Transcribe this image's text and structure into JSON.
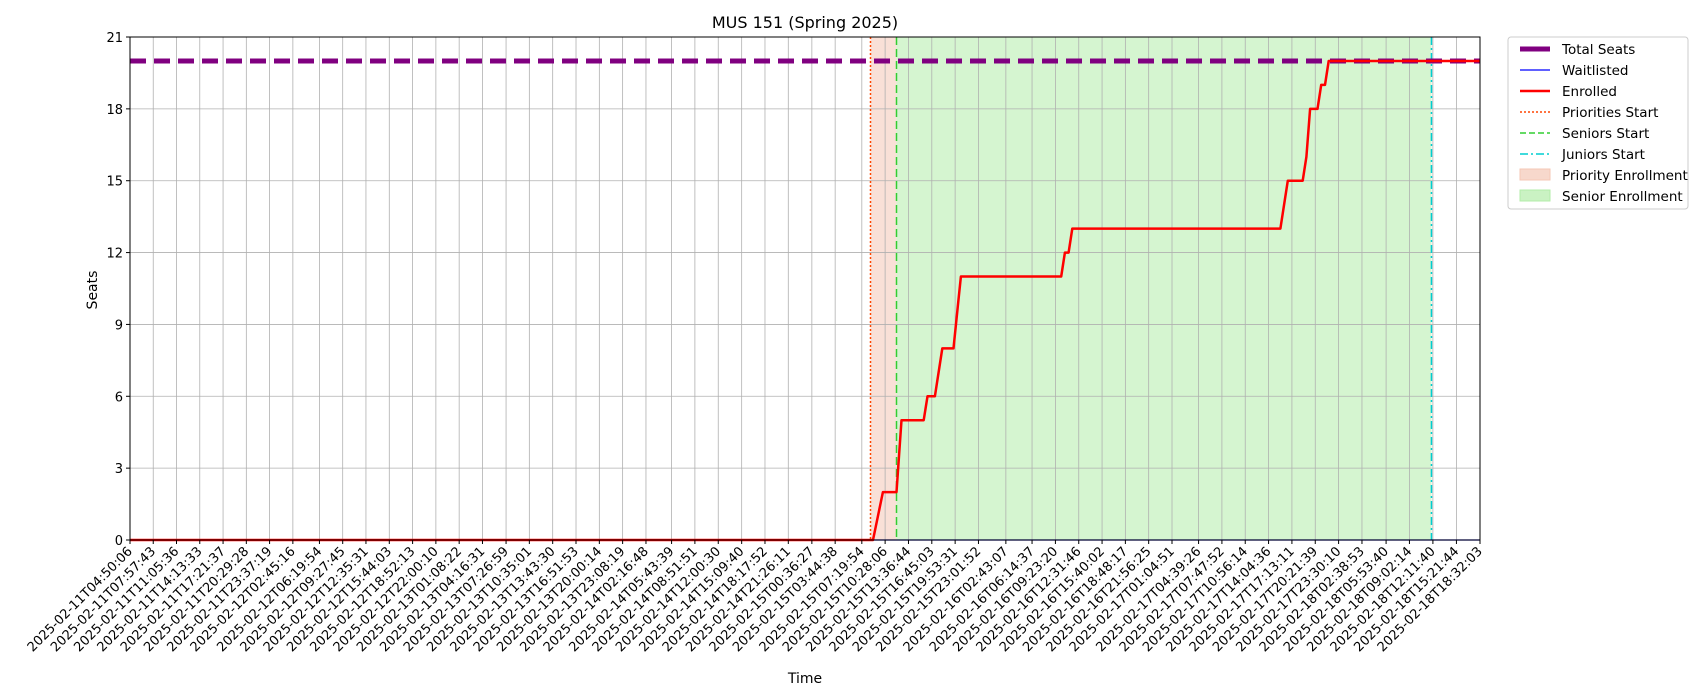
{
  "chart_data": {
    "type": "line",
    "title": "MUS 151 (Spring 2025)",
    "xlabel": "Time",
    "ylabel": "Seats",
    "ylim": [
      0,
      21
    ],
    "yticks": [
      0,
      3,
      6,
      9,
      12,
      15,
      18,
      21
    ],
    "grid": true,
    "legend_position": "outside-right-top",
    "x_ticks": [
      "2025-02-11T04:50:06",
      "2025-02-11T07:57:43",
      "2025-02-11T11:05:36",
      "2025-02-11T14:13:33",
      "2025-02-11T17:21:37",
      "2025-02-11T20:29:28",
      "2025-02-11T23:37:19",
      "2025-02-12T02:45:16",
      "2025-02-12T06:19:54",
      "2025-02-12T09:27:45",
      "2025-02-12T12:35:31",
      "2025-02-12T15:44:03",
      "2025-02-12T18:52:13",
      "2025-02-12T22:00:10",
      "2025-02-13T01:08:22",
      "2025-02-13T04:16:31",
      "2025-02-13T07:26:59",
      "2025-02-13T10:35:01",
      "2025-02-13T13:43:30",
      "2025-02-13T16:51:53",
      "2025-02-13T20:00:14",
      "2025-02-13T23:08:19",
      "2025-02-14T02:16:48",
      "2025-02-14T05:43:39",
      "2025-02-14T08:51:51",
      "2025-02-14T12:00:30",
      "2025-02-14T15:09:40",
      "2025-02-14T18:17:52",
      "2025-02-14T21:26:11",
      "2025-02-15T00:36:27",
      "2025-02-15T03:44:38",
      "2025-02-15T07:19:54",
      "2025-02-15T10:28:06",
      "2025-02-15T13:36:44",
      "2025-02-15T16:45:03",
      "2025-02-15T19:53:31",
      "2025-02-15T23:01:52",
      "2025-02-16T02:43:07",
      "2025-02-16T06:14:37",
      "2025-02-16T09:23:20",
      "2025-02-16T12:31:46",
      "2025-02-16T15:40:02",
      "2025-02-16T18:48:17",
      "2025-02-16T21:56:25",
      "2025-02-17T01:04:51",
      "2025-02-17T04:39:26",
      "2025-02-17T07:47:52",
      "2025-02-17T10:56:14",
      "2025-02-17T14:04:36",
      "2025-02-17T17:13:11",
      "2025-02-17T20:21:39",
      "2025-02-17T23:30:10",
      "2025-02-18T02:38:53",
      "2025-02-18T05:53:40",
      "2025-02-18T09:02:14",
      "2025-02-18T12:11:40",
      "2025-02-18T15:21:44",
      "2025-02-18T18:32:03"
    ],
    "series": [
      {
        "name": "Total Seats",
        "color": "#800080",
        "style": "dashed",
        "points": [
          [
            "2025-02-11T04:50:06",
            20
          ],
          [
            "2025-02-18T18:32:03",
            20
          ]
        ]
      },
      {
        "name": "Waitlisted",
        "color": "#0000ff",
        "style": "solid",
        "points": [
          [
            "2025-02-11T04:50:06",
            0
          ],
          [
            "2025-02-18T18:32:03",
            0
          ]
        ]
      },
      {
        "name": "Enrolled",
        "color": "#ff0000",
        "style": "solid",
        "points": [
          [
            "2025-02-11T04:50:06",
            0
          ],
          [
            "2025-02-15T08:50:00",
            0
          ],
          [
            "2025-02-15T10:10:00",
            2
          ],
          [
            "2025-02-15T12:00:00",
            2
          ],
          [
            "2025-02-15T12:40:00",
            5
          ],
          [
            "2025-02-15T15:40:00",
            5
          ],
          [
            "2025-02-15T16:10:00",
            6
          ],
          [
            "2025-02-15T17:10:00",
            6
          ],
          [
            "2025-02-15T18:10:00",
            8
          ],
          [
            "2025-02-15T19:40:00",
            8
          ],
          [
            "2025-02-15T20:20:00",
            10
          ],
          [
            "2025-02-15T20:40:00",
            11
          ],
          [
            "2025-02-16T10:10:00",
            11
          ],
          [
            "2025-02-16T10:40:00",
            12
          ],
          [
            "2025-02-16T11:10:00",
            12
          ],
          [
            "2025-02-16T11:40:00",
            13
          ],
          [
            "2025-02-17T15:40:00",
            13
          ],
          [
            "2025-02-17T16:40:00",
            15
          ],
          [
            "2025-02-17T18:40:00",
            15
          ],
          [
            "2025-02-17T19:10:00",
            16
          ],
          [
            "2025-02-17T19:40:00",
            18
          ],
          [
            "2025-02-17T20:40:00",
            18
          ],
          [
            "2025-02-17T21:10:00",
            19
          ],
          [
            "2025-02-17T21:40:00",
            19
          ],
          [
            "2025-02-17T22:10:00",
            20
          ],
          [
            "2025-02-18T18:32:03",
            20
          ]
        ]
      }
    ],
    "vlines": [
      {
        "name": "Priorities Start",
        "x": "2025-02-15T08:30:00",
        "color": "#ff4500",
        "style": "dotted"
      },
      {
        "name": "Seniors Start",
        "x": "2025-02-15T12:00:00",
        "color": "#32cd32",
        "style": "dashed"
      },
      {
        "name": "Juniors Start",
        "x": "2025-02-18T12:00:00",
        "color": "#00ced1",
        "style": "dashdot"
      }
    ],
    "spans": [
      {
        "name": "Priority Enrollment",
        "from": "2025-02-15T08:30:00",
        "to": "2025-02-15T12:00:00",
        "color": "#f4c7b6"
      },
      {
        "name": "Senior Enrollment",
        "from": "2025-02-15T12:00:00",
        "to": "2025-02-18T12:00:00",
        "color": "#b3ecaa"
      }
    ],
    "legend": [
      "Total Seats",
      "Waitlisted",
      "Enrolled",
      "Priorities Start",
      "Seniors Start",
      "Juniors Start",
      "Priority Enrollment",
      "Senior Enrollment"
    ]
  }
}
